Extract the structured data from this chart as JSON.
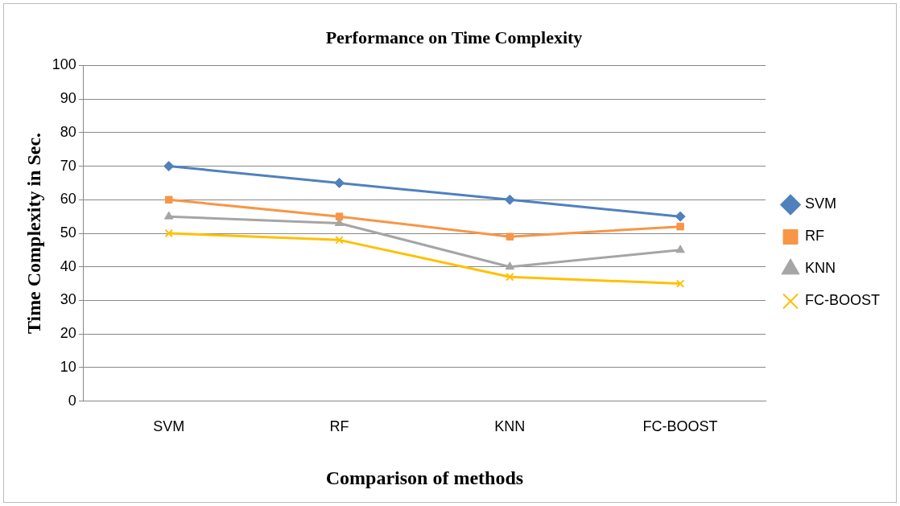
{
  "chart_data": {
    "type": "line",
    "title": "Performance on Time Complexity",
    "xlabel": "Comparison of methods",
    "ylabel": "Time Complexity in Sec.",
    "categories": [
      "SVM",
      "RF",
      "KNN",
      "FC-BOOST"
    ],
    "series": [
      {
        "name": "SVM",
        "color": "#4f81bd",
        "values": [
          70,
          65,
          60,
          55
        ],
        "marker": "diamond"
      },
      {
        "name": "RF",
        "color": "#f79646",
        "values": [
          60,
          55,
          49,
          52
        ],
        "marker": "square"
      },
      {
        "name": "KNN",
        "color": "#a5a5a5",
        "values": [
          55,
          53,
          40,
          45
        ],
        "marker": "triangle"
      },
      {
        "name": "FC-BOOST",
        "color": "#ffc000",
        "values": [
          50,
          48,
          37,
          35
        ],
        "marker": "cross"
      }
    ],
    "ylim": [
      0,
      100
    ],
    "yticks": [
      0,
      10,
      20,
      30,
      40,
      50,
      60,
      70,
      80,
      90,
      100
    ],
    "grid": "y",
    "legend": "right",
    "line_style": "solid"
  }
}
